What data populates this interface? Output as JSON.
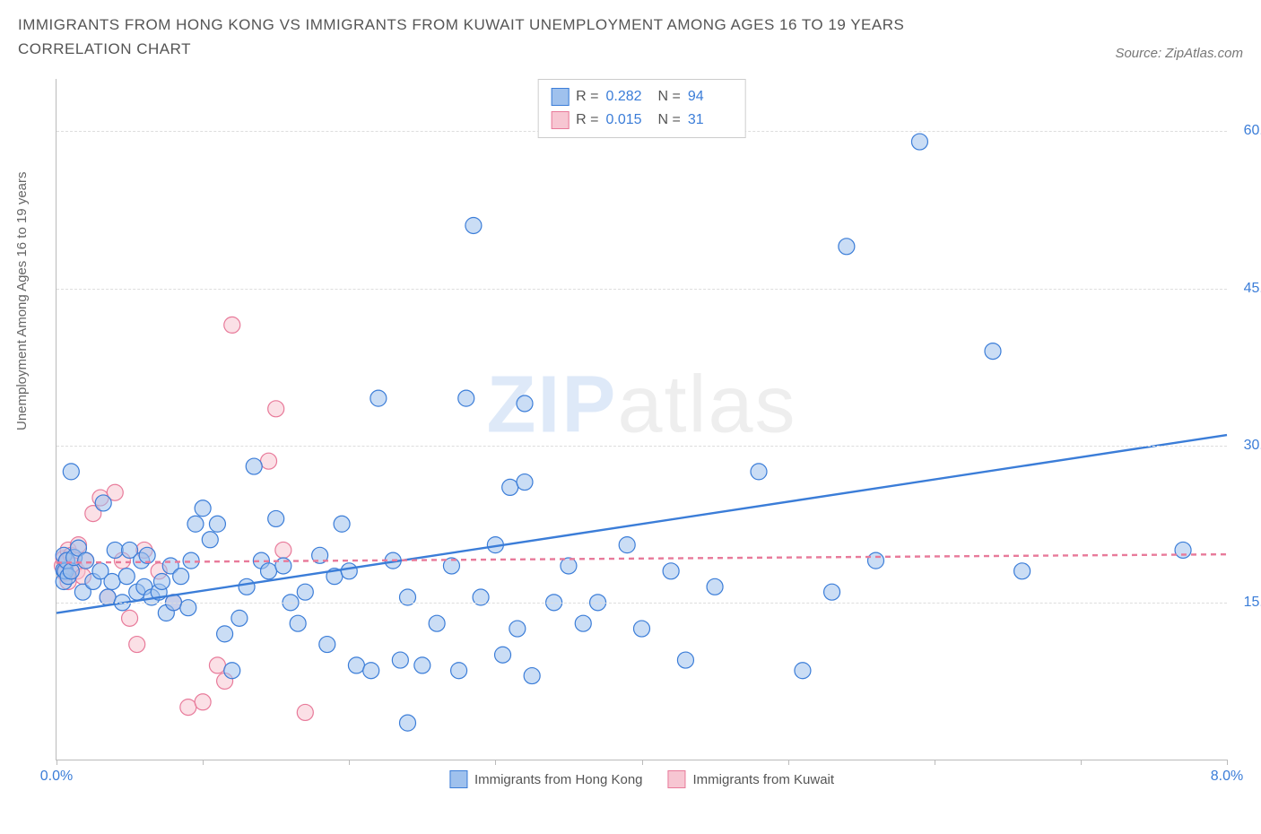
{
  "title": "IMMIGRANTS FROM HONG KONG VS IMMIGRANTS FROM KUWAIT UNEMPLOYMENT AMONG AGES 16 TO 19 YEARS CORRELATION CHART",
  "source_label": "Source: ZipAtlas.com",
  "y_axis_label": "Unemployment Among Ages 16 to 19 years",
  "watermark": {
    "bold": "ZIP",
    "thin": "atlas"
  },
  "chart": {
    "type": "scatter",
    "background_color": "#ffffff",
    "grid_color": "#dddddd",
    "axis_color": "#bbbbbb",
    "text_color": "#555555",
    "accent_color": "#3b7dd8",
    "xlim": [
      0,
      8
    ],
    "ylim": [
      0,
      65
    ],
    "x_tick_positions": [
      0,
      1,
      2,
      3,
      4,
      5,
      6,
      7,
      8
    ],
    "x_tick_labels": {
      "0": "0.0%",
      "8": "8.0%"
    },
    "y_ticks": [
      15,
      30,
      45,
      60
    ],
    "y_tick_labels": {
      "15": "15.0%",
      "30": "30.0%",
      "45": "45.0%",
      "60": "60.0%"
    },
    "marker_radius": 9,
    "marker_opacity": 0.55,
    "marker_stroke_width": 1.2,
    "trend_line_width": 2.4
  },
  "series": [
    {
      "key": "hong_kong",
      "label": "Immigrants from Hong Kong",
      "fill": "#9fc1ed",
      "stroke": "#3b7dd8",
      "trend_dash": "none",
      "R": "0.282",
      "N": "94",
      "trend": {
        "x1": 0,
        "y1": 14.0,
        "x2": 8,
        "y2": 31.0
      },
      "points": [
        [
          0.05,
          18.1
        ],
        [
          0.05,
          17.0
        ],
        [
          0.05,
          19.5
        ],
        [
          0.06,
          18.0
        ],
        [
          0.07,
          19.0
        ],
        [
          0.08,
          17.5
        ],
        [
          0.1,
          27.5
        ],
        [
          0.1,
          18.0
        ],
        [
          0.12,
          19.3
        ],
        [
          0.15,
          20.2
        ],
        [
          0.18,
          16.0
        ],
        [
          0.2,
          19.0
        ],
        [
          0.25,
          17.0
        ],
        [
          0.3,
          18.0
        ],
        [
          0.32,
          24.5
        ],
        [
          0.35,
          15.5
        ],
        [
          0.38,
          17.0
        ],
        [
          0.4,
          20.0
        ],
        [
          0.45,
          15.0
        ],
        [
          0.48,
          17.5
        ],
        [
          0.5,
          20.0
        ],
        [
          0.55,
          16.0
        ],
        [
          0.58,
          19.0
        ],
        [
          0.6,
          16.5
        ],
        [
          0.62,
          19.5
        ],
        [
          0.65,
          15.5
        ],
        [
          0.7,
          16.0
        ],
        [
          0.72,
          17.0
        ],
        [
          0.75,
          14.0
        ],
        [
          0.78,
          18.5
        ],
        [
          0.8,
          15.0
        ],
        [
          0.85,
          17.5
        ],
        [
          0.9,
          14.5
        ],
        [
          0.92,
          19.0
        ],
        [
          0.95,
          22.5
        ],
        [
          1.0,
          24.0
        ],
        [
          1.05,
          21.0
        ],
        [
          1.1,
          22.5
        ],
        [
          1.15,
          12.0
        ],
        [
          1.2,
          8.5
        ],
        [
          1.25,
          13.5
        ],
        [
          1.3,
          16.5
        ],
        [
          1.35,
          28.0
        ],
        [
          1.4,
          19.0
        ],
        [
          1.45,
          18.0
        ],
        [
          1.5,
          23.0
        ],
        [
          1.55,
          18.5
        ],
        [
          1.6,
          15.0
        ],
        [
          1.65,
          13.0
        ],
        [
          1.7,
          16.0
        ],
        [
          1.8,
          19.5
        ],
        [
          1.85,
          11.0
        ],
        [
          1.9,
          17.5
        ],
        [
          1.95,
          22.5
        ],
        [
          2.0,
          18.0
        ],
        [
          2.05,
          9.0
        ],
        [
          2.15,
          8.5
        ],
        [
          2.2,
          34.5
        ],
        [
          2.3,
          19.0
        ],
        [
          2.35,
          9.5
        ],
        [
          2.4,
          15.5
        ],
        [
          2.4,
          3.5
        ],
        [
          2.5,
          9.0
        ],
        [
          2.6,
          13.0
        ],
        [
          2.7,
          18.5
        ],
        [
          2.75,
          8.5
        ],
        [
          2.8,
          34.5
        ],
        [
          2.85,
          51.0
        ],
        [
          2.9,
          15.5
        ],
        [
          3.0,
          20.5
        ],
        [
          3.05,
          10.0
        ],
        [
          3.1,
          26.0
        ],
        [
          3.15,
          12.5
        ],
        [
          3.2,
          34.0
        ],
        [
          3.2,
          26.5
        ],
        [
          3.25,
          8.0
        ],
        [
          3.4,
          15.0
        ],
        [
          3.5,
          18.5
        ],
        [
          3.6,
          13.0
        ],
        [
          3.7,
          15.0
        ],
        [
          3.9,
          20.5
        ],
        [
          4.0,
          12.5
        ],
        [
          4.2,
          18.0
        ],
        [
          4.3,
          9.5
        ],
        [
          4.5,
          16.5
        ],
        [
          4.8,
          27.5
        ],
        [
          5.1,
          8.5
        ],
        [
          5.3,
          16.0
        ],
        [
          5.4,
          49.0
        ],
        [
          5.6,
          19.0
        ],
        [
          5.9,
          59.0
        ],
        [
          6.4,
          39.0
        ],
        [
          6.6,
          18.0
        ],
        [
          7.7,
          20.0
        ]
      ]
    },
    {
      "key": "kuwait",
      "label": "Immigrants from Kuwait",
      "fill": "#f7c6d2",
      "stroke": "#e87a9a",
      "trend_dash": "6,5",
      "R": "0.015",
      "N": "31",
      "trend": {
        "x1": 0,
        "y1": 18.8,
        "x2": 8,
        "y2": 19.6
      },
      "points": [
        [
          0.04,
          18.5
        ],
        [
          0.05,
          19.2
        ],
        [
          0.06,
          17.8
        ],
        [
          0.07,
          18.9
        ],
        [
          0.08,
          17.0
        ],
        [
          0.08,
          20.0
        ],
        [
          0.1,
          19.5
        ],
        [
          0.12,
          18.5
        ],
        [
          0.14,
          18.0
        ],
        [
          0.15,
          20.5
        ],
        [
          0.18,
          17.5
        ],
        [
          0.2,
          19.0
        ],
        [
          0.25,
          23.5
        ],
        [
          0.3,
          25.0
        ],
        [
          0.35,
          15.5
        ],
        [
          0.4,
          25.5
        ],
        [
          0.45,
          19.0
        ],
        [
          0.5,
          13.5
        ],
        [
          0.55,
          11.0
        ],
        [
          0.6,
          20.0
        ],
        [
          0.7,
          18.0
        ],
        [
          0.8,
          15.0
        ],
        [
          0.9,
          5.0
        ],
        [
          1.0,
          5.5
        ],
        [
          1.1,
          9.0
        ],
        [
          1.15,
          7.5
        ],
        [
          1.2,
          41.5
        ],
        [
          1.45,
          28.5
        ],
        [
          1.5,
          33.5
        ],
        [
          1.55,
          20.0
        ],
        [
          1.7,
          4.5
        ]
      ]
    }
  ],
  "legend_top_labels": {
    "R": "R =",
    "N": "N ="
  }
}
